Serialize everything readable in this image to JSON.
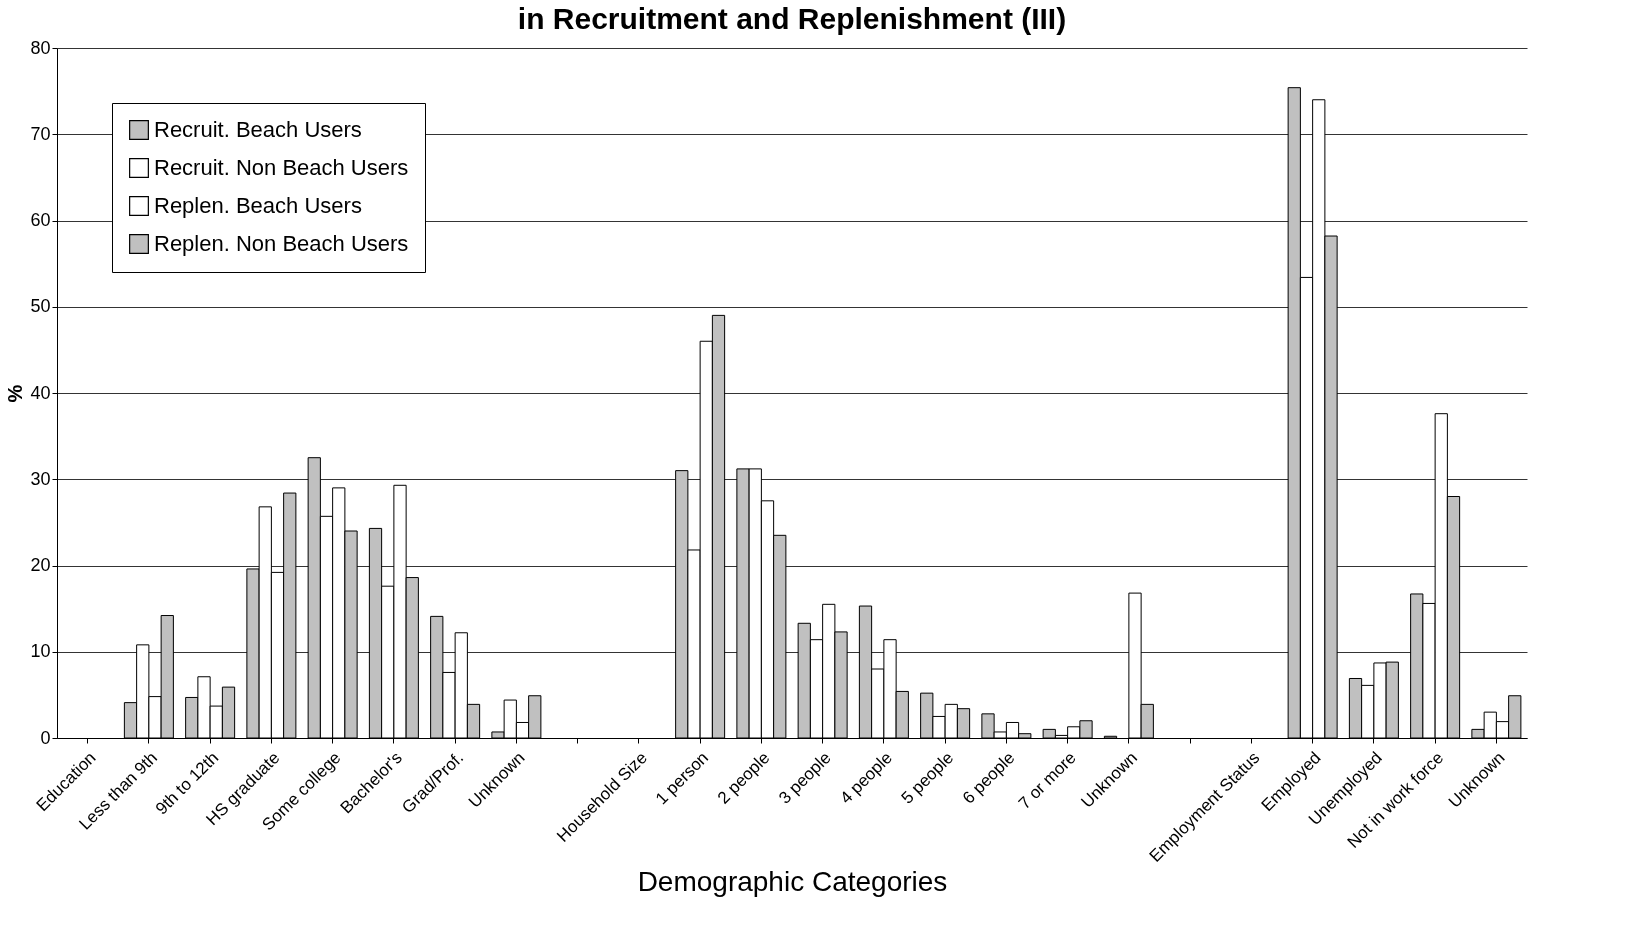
{
  "chart_data": {
    "type": "bar",
    "title": "in Recruitment and Replenishment (III)",
    "xlabel": "Demographic Categories",
    "ylabel": "%",
    "categories": [
      "Education",
      "Less than 9th",
      "9th to 12th",
      "HS graduate",
      "Some college",
      "Bachelor's",
      "Grad/Prof.",
      "Unknown",
      null,
      "Household Size",
      "1 person",
      "2 people",
      "3 people",
      "4 people",
      "5 people",
      "6 people",
      "7 or more",
      "Unknown",
      null,
      "Employment Status",
      "Employed",
      "Unemployed",
      "Not in work force",
      "Unknown"
    ],
    "series": [
      {
        "name": "Recruit. Beach Users",
        "color": "#c0c0c0",
        "values": [
          null,
          4.1,
          4.7,
          19.6,
          32.5,
          24.3,
          14.1,
          0.7,
          null,
          null,
          31.0,
          31.2,
          13.3,
          15.3,
          5.2,
          2.8,
          1.0,
          0.2,
          null,
          null,
          75.4,
          6.9,
          16.7,
          1.0
        ]
      },
      {
        "name": "Recruit. Non Beach Users",
        "color": "#ffffff",
        "values": [
          null,
          10.8,
          7.1,
          26.8,
          25.7,
          17.6,
          7.6,
          4.4,
          null,
          null,
          21.8,
          31.2,
          11.4,
          8.0,
          2.5,
          0.7,
          0.3,
          null,
          null,
          null,
          53.4,
          6.1,
          15.6,
          3.0
        ]
      },
      {
        "name": "Replen. Beach Users",
        "color": "#ffffff",
        "values": [
          null,
          4.8,
          3.7,
          19.2,
          29.0,
          29.3,
          12.2,
          1.8,
          null,
          null,
          46.0,
          27.5,
          15.5,
          11.4,
          3.9,
          1.8,
          1.3,
          16.8,
          null,
          null,
          74.0,
          8.7,
          37.6,
          1.9
        ]
      },
      {
        "name": "Replen. Non Beach Users",
        "color": "#c0c0c0",
        "values": [
          null,
          14.2,
          5.9,
          28.4,
          24.0,
          18.6,
          3.9,
          4.9,
          null,
          null,
          49.0,
          23.5,
          12.3,
          5.4,
          3.4,
          0.5,
          2.0,
          3.9,
          null,
          null,
          58.2,
          8.8,
          28.0,
          4.9
        ]
      }
    ],
    "ylim": [
      0,
      80
    ],
    "yticks": [
      0,
      10,
      20,
      30,
      40,
      50,
      60,
      70,
      80
    ],
    "grid": "y",
    "legend": "top left"
  }
}
